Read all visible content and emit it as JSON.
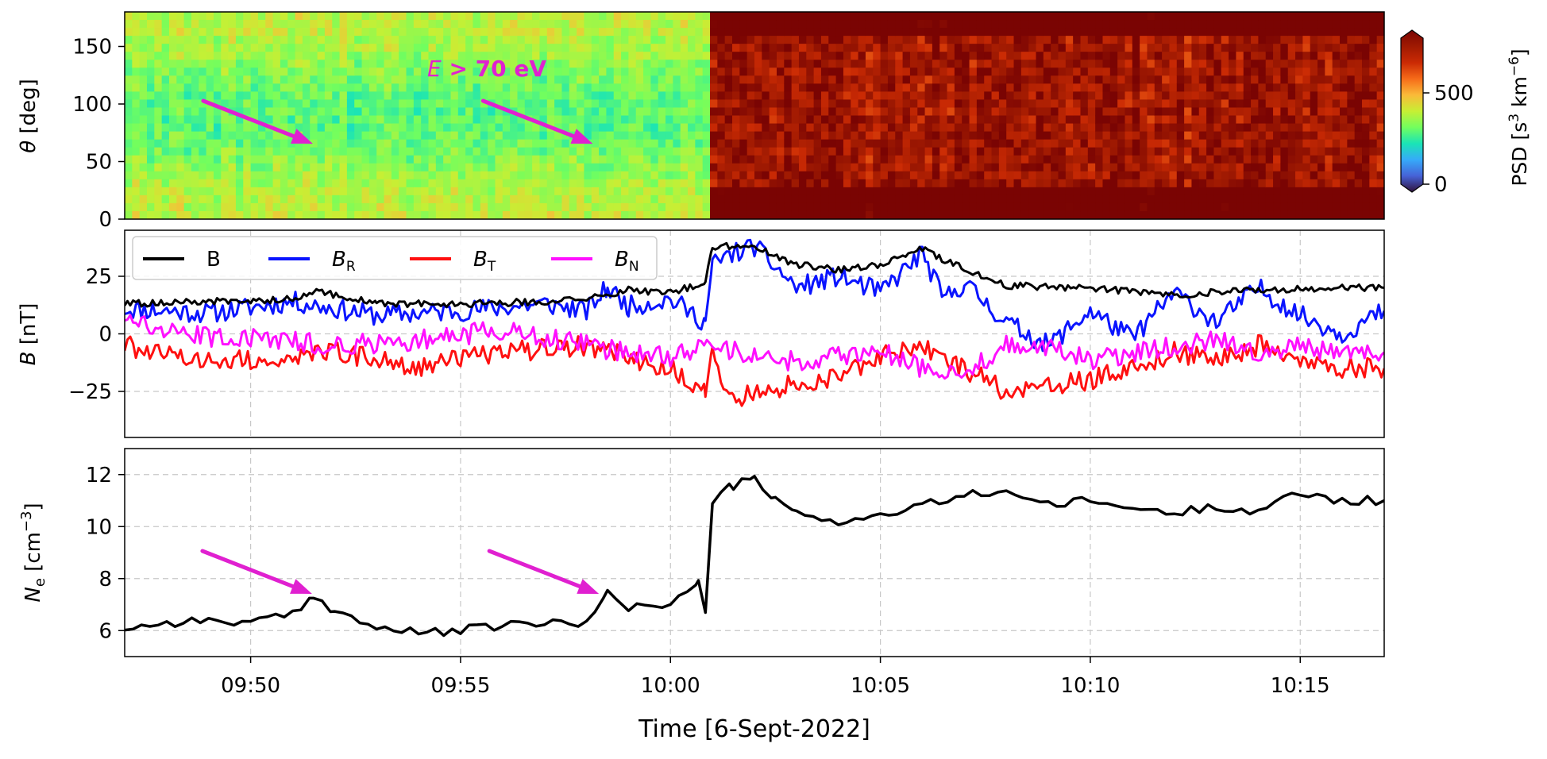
{
  "figure": {
    "x_axis_label": "Time [6-Sept-2022]",
    "x_tick_labels": [
      "09:50",
      "09:55",
      "10:00",
      "10:05",
      "10:10",
      "10:15"
    ]
  },
  "colors": {
    "B": "#000000",
    "BR": "#0a14ff",
    "BT": "#ff1010",
    "BN": "#ff10ff",
    "arrow": "#e020d0",
    "grid": "#c8c8c8"
  },
  "chart_data": [
    {
      "type": "heatmap",
      "panel": "top",
      "ylabel_symbol": "θ",
      "ylabel_unit": " [deg]",
      "ylim": [
        0,
        180
      ],
      "y_ticks": [
        0,
        50,
        100,
        150
      ],
      "x_range": [
        "09:47",
        "10:17"
      ],
      "annotation_symbol": "E",
      "annotation_text": " > 70 eV",
      "colorbar": {
        "label_main": "PSD [s",
        "label_exp1": "3",
        "label_mid": " km",
        "label_exp2": "−6",
        "label_end": "]",
        "range": [
          0,
          800
        ],
        "ticks": [
          0,
          500
        ],
        "colormap": "turbo"
      },
      "psd_mean_by_interval": [
        {
          "from": "09:47",
          "to": "10:01",
          "psd": 300
        },
        {
          "from": "10:01",
          "to": "10:17",
          "psd": 760
        }
      ],
      "arrows_at": [
        "09:51:30",
        "09:58:10"
      ]
    },
    {
      "type": "line",
      "panel": "middle",
      "ylabel_symbol": "B",
      "ylabel_unit": " [nT]",
      "ylim": [
        -45,
        45
      ],
      "y_ticks": [
        -25,
        0,
        25
      ],
      "y_tick_labels": [
        "−25",
        "0",
        "25"
      ],
      "grid": true,
      "legend_position": "top-left",
      "series": [
        {
          "name": "B",
          "sub": "",
          "key": "B",
          "x": [
            "09:47",
            "09:49",
            "09:51",
            "09:51:30",
            "09:53",
            "09:55",
            "09:57",
            "09:58",
            "09:59",
            "10:00",
            "10:00:50",
            "10:01",
            "10:02",
            "10:03",
            "10:04",
            "10:05",
            "10:06",
            "10:07",
            "10:08",
            "10:10",
            "10:12",
            "10:14",
            "10:16",
            "10:17"
          ],
          "y": [
            13,
            14,
            15,
            19,
            13,
            13,
            14,
            15,
            19,
            18,
            22,
            38,
            38,
            30,
            28,
            30,
            37,
            28,
            21,
            20,
            17,
            19,
            20,
            20
          ]
        },
        {
          "name": "B",
          "sub": "R",
          "key": "BR",
          "x": [
            "09:47",
            "09:49",
            "09:51",
            "09:53",
            "09:55",
            "09:57",
            "09:58",
            "09:58:30",
            "09:59",
            "10:00",
            "10:00:50",
            "10:01",
            "10:01:30",
            "10:02",
            "10:03",
            "10:04",
            "10:05",
            "10:06",
            "10:06:30",
            "10:07",
            "10:08",
            "10:09",
            "10:10",
            "10:11",
            "10:12",
            "10:13",
            "10:14",
            "10:15",
            "10:16",
            "10:17"
          ],
          "y": [
            11,
            9,
            14,
            8,
            10,
            13,
            10,
            20,
            12,
            15,
            5,
            30,
            35,
            38,
            20,
            25,
            18,
            35,
            15,
            22,
            5,
            -5,
            10,
            -2,
            18,
            5,
            20,
            8,
            0,
            10
          ]
        },
        {
          "name": "B",
          "sub": "T",
          "key": "BT",
          "x": [
            "09:47",
            "09:48",
            "09:50",
            "09:52",
            "09:54",
            "09:56",
            "09:58",
            "09:59",
            "10:00",
            "10:00:50",
            "10:01",
            "10:01:30",
            "10:02",
            "10:03",
            "10:04",
            "10:05",
            "10:06",
            "10:07",
            "10:08",
            "10:09",
            "10:10",
            "10:11",
            "10:12",
            "10:13",
            "10:14",
            "10:15",
            "10:16",
            "10:17"
          ],
          "y": [
            -5,
            -10,
            -12,
            -8,
            -14,
            -8,
            -5,
            -10,
            -15,
            -25,
            -10,
            -30,
            -25,
            -22,
            -18,
            -10,
            -5,
            -15,
            -25,
            -22,
            -20,
            -15,
            -8,
            -12,
            -5,
            -10,
            -15,
            -15
          ]
        },
        {
          "name": "B",
          "sub": "N",
          "key": "BN",
          "x": [
            "09:47",
            "09:48",
            "09:50",
            "09:52",
            "09:54",
            "09:56",
            "09:58",
            "09:59",
            "10:00",
            "10:01",
            "10:02",
            "10:03",
            "10:04",
            "10:05",
            "10:06",
            "10:07",
            "10:08",
            "10:09",
            "10:10",
            "10:11",
            "10:12",
            "10:13",
            "10:14",
            "10:15",
            "10:16",
            "10:17"
          ],
          "y": [
            8,
            0,
            -2,
            -5,
            -3,
            2,
            -5,
            -8,
            -10,
            -5,
            -10,
            -12,
            -10,
            -8,
            -15,
            -18,
            -5,
            -5,
            -12,
            -8,
            -5,
            -3,
            -8,
            -5,
            -10,
            -8
          ]
        }
      ]
    },
    {
      "type": "line",
      "panel": "bottom",
      "ylabel_symbol": "N",
      "ylabel_sub": "e",
      "ylabel_unit_a": " [cm",
      "ylabel_exp": "−3",
      "ylabel_unit_b": "]",
      "ylim": [
        5,
        13
      ],
      "y_ticks": [
        6,
        8,
        10,
        12
      ],
      "grid": true,
      "series": [
        {
          "key": "Ne",
          "x": [
            "09:47",
            "09:48",
            "09:49",
            "09:50",
            "09:51",
            "09:51:30",
            "09:52",
            "09:53",
            "09:54",
            "09:55",
            "09:56",
            "09:57",
            "09:58",
            "09:58:30",
            "09:59",
            "10:00",
            "10:00:40",
            "10:00:50",
            "10:01",
            "10:01:30",
            "10:02",
            "10:02:30",
            "10:03",
            "10:04",
            "10:05",
            "10:06",
            "10:07",
            "10:08",
            "10:09",
            "10:10",
            "10:11",
            "10:12",
            "10:13",
            "10:14",
            "10:15",
            "10:16",
            "10:17"
          ],
          "y": [
            6.1,
            6.3,
            6.4,
            6.3,
            6.6,
            7.3,
            6.8,
            6.1,
            5.9,
            6.0,
            6.2,
            6.3,
            6.2,
            7.6,
            6.9,
            7.0,
            7.8,
            6.8,
            11.0,
            11.6,
            11.8,
            11.0,
            10.5,
            10.2,
            10.4,
            10.8,
            11.2,
            11.4,
            10.8,
            11.0,
            10.7,
            10.5,
            10.8,
            10.6,
            11.3,
            11.0,
            11.0
          ]
        }
      ],
      "arrows_at": [
        "09:51:30",
        "09:58:20"
      ]
    }
  ]
}
